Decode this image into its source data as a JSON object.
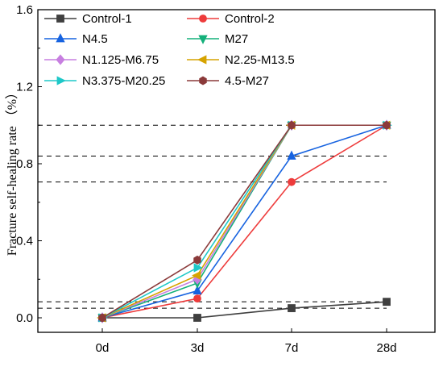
{
  "chart_data": {
    "type": "line",
    "title": "",
    "xlabel": "",
    "ylabel": "Fracture self-healing rate （%）",
    "categories": [
      "0d",
      "3d",
      "7d",
      "28d"
    ],
    "ylim": [
      0,
      1.6
    ],
    "yticks": [
      "0.0",
      "0.4",
      "0.8",
      "1.2",
      "1.6"
    ],
    "grid": false,
    "legend": "top-left, 2 columns",
    "series": [
      {
        "name": "Control-1",
        "values": [
          0,
          0,
          0.05,
          0.083
        ],
        "color": "#3f3f3f",
        "marker": "square"
      },
      {
        "name": "Control-2",
        "values": [
          0,
          0.1,
          0.705,
          1.0
        ],
        "color": "#ee3b3b",
        "marker": "circle"
      },
      {
        "name": "N4.5",
        "values": [
          0,
          0.14,
          0.84,
          1.0
        ],
        "color": "#1763e0",
        "marker": "triangle-up"
      },
      {
        "name": "M27",
        "values": [
          0,
          0.18,
          1.0,
          1.0
        ],
        "color": "#14b07a",
        "marker": "triangle-down"
      },
      {
        "name": "N1.125-M6.75",
        "values": [
          0,
          0.2,
          1.0,
          1.0
        ],
        "color": "#c77fe0",
        "marker": "diamond"
      },
      {
        "name": "N2.25-M13.5",
        "values": [
          0,
          0.22,
          1.0,
          1.0
        ],
        "color": "#d6a300",
        "marker": "triangle-left"
      },
      {
        "name": "N3.375-M20.25",
        "values": [
          0,
          0.26,
          1.0,
          1.0
        ],
        "color": "#1ec8c8",
        "marker": "triangle-right"
      },
      {
        "name": "4.5-M27",
        "values": [
          0,
          0.3,
          1.0,
          1.0
        ],
        "color": "#8b3a3a",
        "marker": "hexagon"
      }
    ],
    "reference_lines": [
      1.0,
      0.84,
      0.705,
      0.083,
      0.05
    ]
  }
}
